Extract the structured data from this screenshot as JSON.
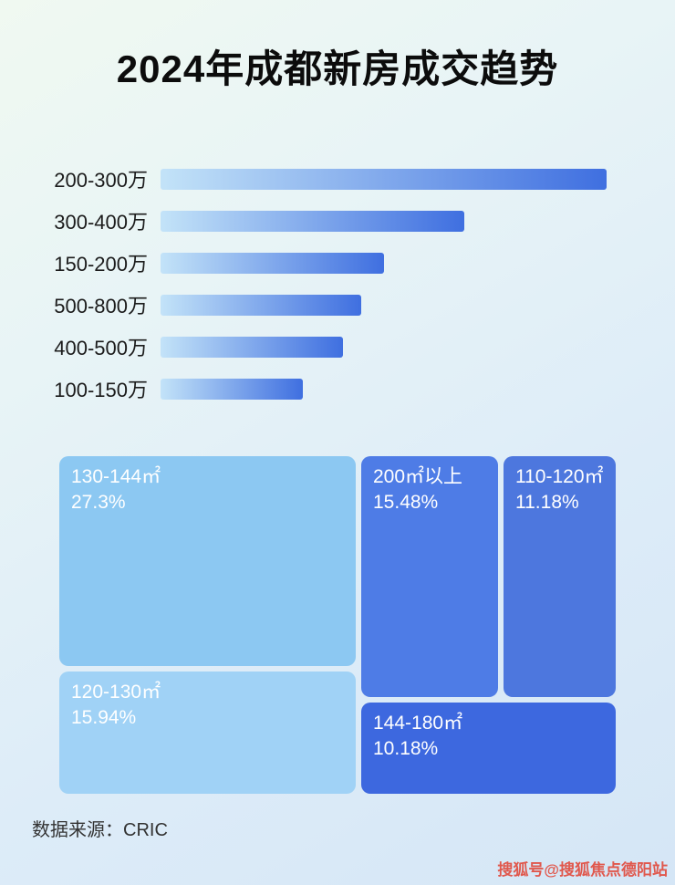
{
  "page": {
    "title": "2024年成都新房成交趋势"
  },
  "chart_data": [
    {
      "type": "bar",
      "title": "2024年成都新房成交趋势",
      "orientation": "horizontal",
      "categories": [
        "200-300万",
        "300-400万",
        "150-200万",
        "500-800万",
        "400-500万",
        "100-150万"
      ],
      "values": [
        100,
        68,
        50,
        45,
        41,
        32
      ],
      "value_note": "relative bar lengths in percent of longest bar; no numeric axis shown in image",
      "xlabel": "",
      "ylabel": "",
      "grid": false,
      "legend": "none"
    },
    {
      "type": "treemap",
      "items": [
        {
          "label": "130-144㎡",
          "value": "27.3%",
          "color": "#8cc8f2"
        },
        {
          "label": "200㎡以上",
          "value": "15.48%",
          "color": "#4e7ce6"
        },
        {
          "label": "110-120㎡",
          "value": "11.18%",
          "color": "#4d77de"
        },
        {
          "label": "120-130㎡",
          "value": "15.94%",
          "color": "#a0d2f6"
        },
        {
          "label": "144-180㎡",
          "value": "10.18%",
          "color": "#3d68df"
        }
      ]
    }
  ],
  "footer": {
    "source_label": "数据来源：CRIC"
  },
  "watermark": {
    "text": "搜狐号@搜狐焦点德阳站",
    "color": "#e2493b"
  },
  "colors": {
    "bar_gradient_start": "#c3e3f8",
    "bar_gradient_end": "#3f6fe0",
    "title_color": "#0c0c0c"
  }
}
